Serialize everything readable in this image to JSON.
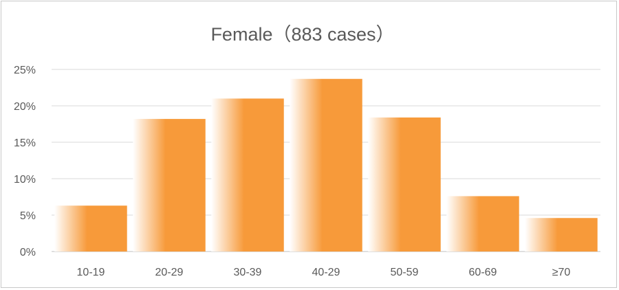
{
  "chart_data": {
    "type": "bar",
    "title": "Female（883 cases）",
    "xlabel": "",
    "ylabel": "",
    "categories": [
      "10-19",
      "20-29",
      "30-39",
      "40-29",
      "50-59",
      "60-69",
      "≥70"
    ],
    "values": [
      6.3,
      18.2,
      21.0,
      23.7,
      18.4,
      7.6,
      4.6
    ],
    "y_unit": "%",
    "ylim": [
      0,
      25
    ],
    "y_ticks": [
      "0%",
      "5%",
      "10%",
      "15%",
      "20%",
      "25%"
    ],
    "grid": true,
    "legend": "none",
    "colors": {
      "bar": "#f79a3a",
      "bar_fade": "#ffffff",
      "grid": "#d9d9d9",
      "text": "#595959"
    }
  }
}
